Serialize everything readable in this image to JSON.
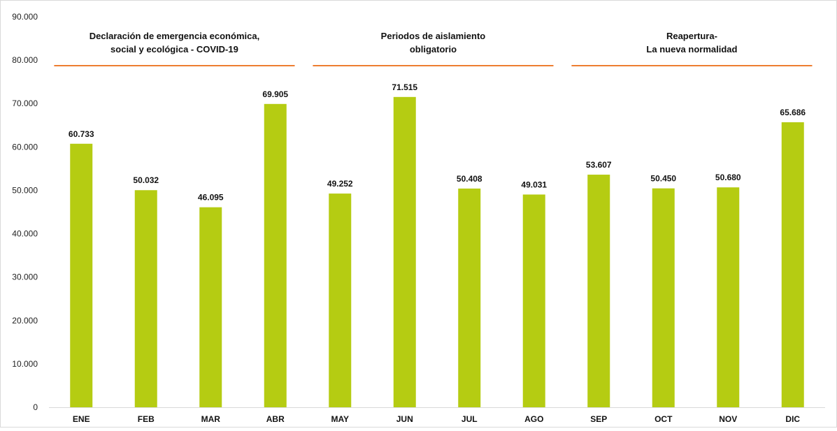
{
  "chart_data": {
    "type": "bar",
    "categories": [
      "ENE",
      "FEB",
      "MAR",
      "ABR",
      "MAY",
      "JUN",
      "JUL",
      "AGO",
      "SEP",
      "OCT",
      "NOV",
      "DIC"
    ],
    "values": [
      60733,
      50032,
      46095,
      69905,
      49252,
      71515,
      50408,
      49031,
      53607,
      50450,
      50680,
      65686
    ],
    "value_labels": [
      "60.733",
      "50.032",
      "46.095",
      "69.905",
      "49.252",
      "71.515",
      "50.408",
      "49.031",
      "53.607",
      "50.450",
      "50.680",
      "65.686"
    ],
    "ylim": [
      0,
      90000
    ],
    "yticks": [
      0,
      10000,
      20000,
      30000,
      40000,
      50000,
      60000,
      70000,
      80000,
      90000
    ],
    "ytick_labels": [
      "0",
      "10.000",
      "20.000",
      "30.000",
      "40.000",
      "50.000",
      "60.000",
      "70.000",
      "80.000",
      "90.000"
    ],
    "grid": false,
    "bar_color": "#b5cc12",
    "annotation_line_color": "#ed7d31",
    "periods": [
      {
        "lines": [
          "Declaración de emergencia económica,",
          "social y ecológica - COVID-19"
        ],
        "start_category": "ENE",
        "end_category": "ABR"
      },
      {
        "lines": [
          "Periodos de aislamiento",
          "obligatorio"
        ],
        "start_category": "MAY",
        "end_category": "AGO"
      },
      {
        "lines": [
          "Reapertura-",
          "La nueva normalidad"
        ],
        "start_category": "SEP",
        "end_category": "DIC"
      }
    ]
  }
}
